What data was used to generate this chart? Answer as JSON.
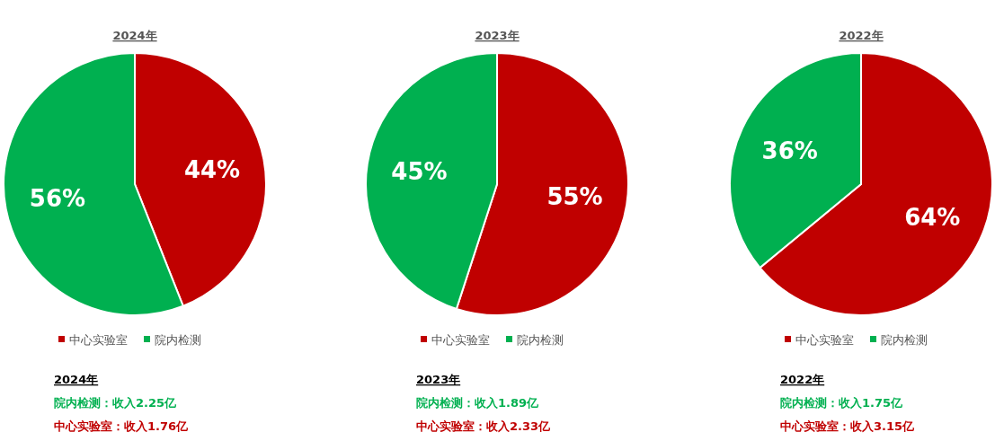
{
  "chart_data": [
    {
      "type": "pie",
      "title": "2024年",
      "categories": [
        "中心实验室",
        "院内检测"
      ],
      "values": [
        44,
        56
      ],
      "value_labels": [
        "44%",
        "56%"
      ],
      "colors": [
        "#c00000",
        "#00b050"
      ],
      "legend": "bottom",
      "annotations": [
        "2024年",
        "院内检测：收入2.25亿",
        "中心实验室：收入1.76亿"
      ]
    },
    {
      "type": "pie",
      "title": "2023年",
      "categories": [
        "中心实验室",
        "院内检测"
      ],
      "values": [
        55,
        45
      ],
      "value_labels": [
        "55%",
        "45%"
      ],
      "colors": [
        "#c00000",
        "#00b050"
      ],
      "legend": "bottom",
      "annotations": [
        "2023年",
        "院内检测：收入1.89亿",
        "中心实验室：收入2.33亿"
      ]
    },
    {
      "type": "pie",
      "title": "2022年",
      "categories": [
        "中心实验室",
        "院内检测"
      ],
      "values": [
        64,
        36
      ],
      "value_labels": [
        "64%",
        "36%"
      ],
      "colors": [
        "#c00000",
        "#00b050"
      ],
      "legend": "bottom",
      "annotations": [
        "2022年",
        "院内检测：收入1.75亿",
        "中心实验室：收入3.15亿"
      ]
    }
  ]
}
